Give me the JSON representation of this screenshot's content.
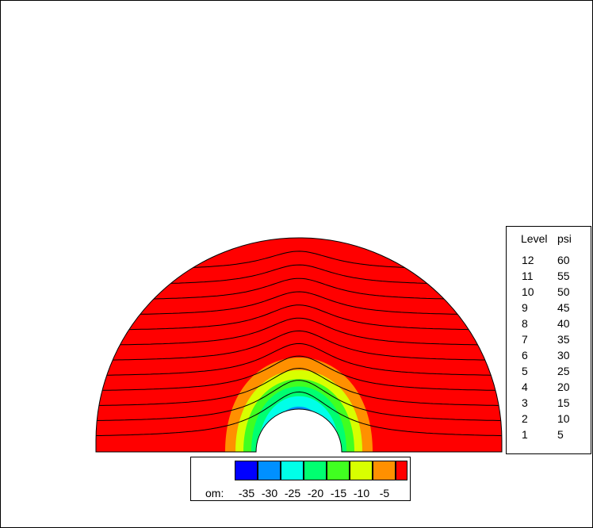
{
  "chart_data": {
    "type": "contour",
    "fill_variable": "om",
    "line_variable": "psi",
    "colorbar": {
      "label": "om:",
      "colors": [
        "#0000ff",
        "#0090ff",
        "#00ffe8",
        "#00ff70",
        "#40ff20",
        "#d8ff00",
        "#ff9000",
        "#ff0000"
      ],
      "ticks": [
        "-35",
        "-30",
        "-25",
        "-20",
        "-15",
        "-10",
        "-5"
      ]
    },
    "psi_legend": {
      "header_level": "Level",
      "header_value": "psi",
      "rows": [
        {
          "level": "12",
          "value": "60"
        },
        {
          "level": "11",
          "value": "55"
        },
        {
          "level": "10",
          "value": "50"
        },
        {
          "level": "9",
          "value": "45"
        },
        {
          "level": "8",
          "value": "40"
        },
        {
          "level": "7",
          "value": "35"
        },
        {
          "level": "6",
          "value": "30"
        },
        {
          "level": "5",
          "value": "25"
        },
        {
          "level": "4",
          "value": "20"
        },
        {
          "level": "3",
          "value": "15"
        },
        {
          "level": "2",
          "value": "10"
        },
        {
          "level": "1",
          "value": "5"
        }
      ]
    },
    "om_bands": [
      {
        "color": "#ff9000",
        "level": "-5"
      },
      {
        "color": "#d8ff00",
        "level": "-10"
      },
      {
        "color": "#40ff20",
        "level": "-15"
      },
      {
        "color": "#00ff70",
        "level": "-20"
      },
      {
        "color": "#00ffe8",
        "level": "-25"
      },
      {
        "color": "#0090ff",
        "level": "-30"
      },
      {
        "color": "#0000ff",
        "level": "-35"
      }
    ],
    "background_color": "#ff0000"
  }
}
